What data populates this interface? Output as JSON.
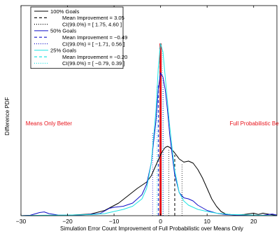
{
  "chart_data": {
    "type": "line",
    "title": "",
    "xlabel": "Simulation Error Count Improvement of Full Probabilistic over Means Only",
    "ylabel": "Difference PDF",
    "xlim": [
      -30,
      25
    ],
    "xticks": [
      -30,
      -20,
      -10,
      0,
      10,
      20
    ],
    "ylim": [
      0,
      1
    ],
    "yticks": [],
    "grid": false,
    "legend_position": "top-left",
    "annotations": [
      {
        "text": "Means Only Better",
        "x": -24,
        "y": 0.43,
        "color": "#e8141c"
      },
      {
        "text": "Full Probabilistic Better",
        "x": 21,
        "y": 0.43,
        "color": "#e8141c"
      }
    ],
    "zero_marker": {
      "x": 0,
      "y_top": 0.82,
      "color": "#e8141c"
    },
    "series": [
      {
        "name": "100% Goals",
        "color": "#000000",
        "style": "solid",
        "points": [
          [
            -30,
            0
          ],
          [
            -20,
            0.002
          ],
          [
            -15,
            0.008
          ],
          [
            -12,
            0.025
          ],
          [
            -9,
            0.06
          ],
          [
            -7,
            0.095
          ],
          [
            -5,
            0.13
          ],
          [
            -3,
            0.16
          ],
          [
            -2,
            0.19
          ],
          [
            -1,
            0.24
          ],
          [
            0,
            0.29
          ],
          [
            0.5,
            0.31
          ],
          [
            1,
            0.325
          ],
          [
            1.5,
            0.33
          ],
          [
            2,
            0.325
          ],
          [
            3,
            0.3
          ],
          [
            4,
            0.27
          ],
          [
            5,
            0.255
          ],
          [
            6,
            0.26
          ],
          [
            7,
            0.25
          ],
          [
            8,
            0.22
          ],
          [
            9,
            0.18
          ],
          [
            10,
            0.13
          ],
          [
            11,
            0.08
          ],
          [
            12,
            0.045
          ],
          [
            13,
            0.02
          ],
          [
            14,
            0.008
          ],
          [
            16,
            0.003
          ],
          [
            18,
            0.006
          ],
          [
            20,
            0.012
          ],
          [
            21,
            0.006
          ],
          [
            22,
            0.012
          ],
          [
            24,
            0.004
          ],
          [
            25,
            0
          ]
        ],
        "mean_label": "Mean Improvement = 3.05",
        "ci_label": "CI(99.0%) = [ 1.75, 4.60 ]",
        "mean_line": {
          "x": 3.05,
          "y_top": 0.29
        },
        "ci_lines": [
          {
            "x": 1.75,
            "y_top": 0.32
          },
          {
            "x": 4.6,
            "y_top": 0.25
          }
        ]
      },
      {
        "name": "50% Goals",
        "color": "#1010c8",
        "style": "solid",
        "points": [
          [
            -30,
            0
          ],
          [
            -28,
            0.002
          ],
          [
            -26,
            0.015
          ],
          [
            -25,
            0.018
          ],
          [
            -24,
            0.01
          ],
          [
            -22,
            0.003
          ],
          [
            -18,
            0.002
          ],
          [
            -13,
            0.01
          ],
          [
            -11,
            0.035
          ],
          [
            -10,
            0.04
          ],
          [
            -8,
            0.045
          ],
          [
            -6,
            0.06
          ],
          [
            -4,
            0.1
          ],
          [
            -3,
            0.15
          ],
          [
            -2,
            0.25
          ],
          [
            -1,
            0.45
          ],
          [
            -0.5,
            0.6
          ],
          [
            0,
            0.68
          ],
          [
            0.5,
            0.66
          ],
          [
            1,
            0.6
          ],
          [
            1.5,
            0.5
          ],
          [
            2,
            0.38
          ],
          [
            3,
            0.2
          ],
          [
            4,
            0.11
          ],
          [
            5,
            0.085
          ],
          [
            6,
            0.08
          ],
          [
            7,
            0.07
          ],
          [
            8,
            0.05
          ],
          [
            10,
            0.025
          ],
          [
            12,
            0.012
          ],
          [
            14,
            0.005
          ],
          [
            18,
            0.002
          ],
          [
            22,
            0.002
          ],
          [
            24,
            0.008
          ],
          [
            25,
            0.003
          ]
        ],
        "mean_label": "Mean Improvement = −0.49",
        "ci_label": "CI(99.0%) = [ −1.71, 0.56 ]",
        "mean_line": {
          "x": -0.49,
          "y_top": 0.62
        },
        "ci_lines": [
          {
            "x": -1.71,
            "y_top": 0.4
          },
          {
            "x": 0.56,
            "y_top": 0.66
          }
        ]
      },
      {
        "name": "25% Goals",
        "color": "#1fe3e3",
        "style": "solid",
        "points": [
          [
            -30,
            0
          ],
          [
            -25,
            0.002
          ],
          [
            -20,
            0.003
          ],
          [
            -15,
            0.005
          ],
          [
            -12,
            0.01
          ],
          [
            -10,
            0.02
          ],
          [
            -8,
            0.03
          ],
          [
            -6,
            0.045
          ],
          [
            -4,
            0.08
          ],
          [
            -3,
            0.13
          ],
          [
            -2,
            0.25
          ],
          [
            -1,
            0.5
          ],
          [
            -0.5,
            0.7
          ],
          [
            0,
            0.82
          ],
          [
            0.5,
            0.78
          ],
          [
            1,
            0.66
          ],
          [
            2,
            0.42
          ],
          [
            3,
            0.22
          ],
          [
            4,
            0.11
          ],
          [
            5,
            0.07
          ],
          [
            6,
            0.05
          ],
          [
            8,
            0.03
          ],
          [
            10,
            0.02
          ],
          [
            12,
            0.012
          ],
          [
            15,
            0.006
          ],
          [
            20,
            0.003
          ],
          [
            25,
            0
          ]
        ],
        "mean_label": "Mean Improvement = −0.20",
        "ci_label": "CI(99.0%) = [ −0.79, 0.39 ]",
        "mean_line": {
          "x": -0.2,
          "y_top": 0.8
        },
        "ci_lines": [
          {
            "x": -0.79,
            "y_top": 0.62
          },
          {
            "x": 0.39,
            "y_top": 0.79
          }
        ]
      }
    ]
  }
}
